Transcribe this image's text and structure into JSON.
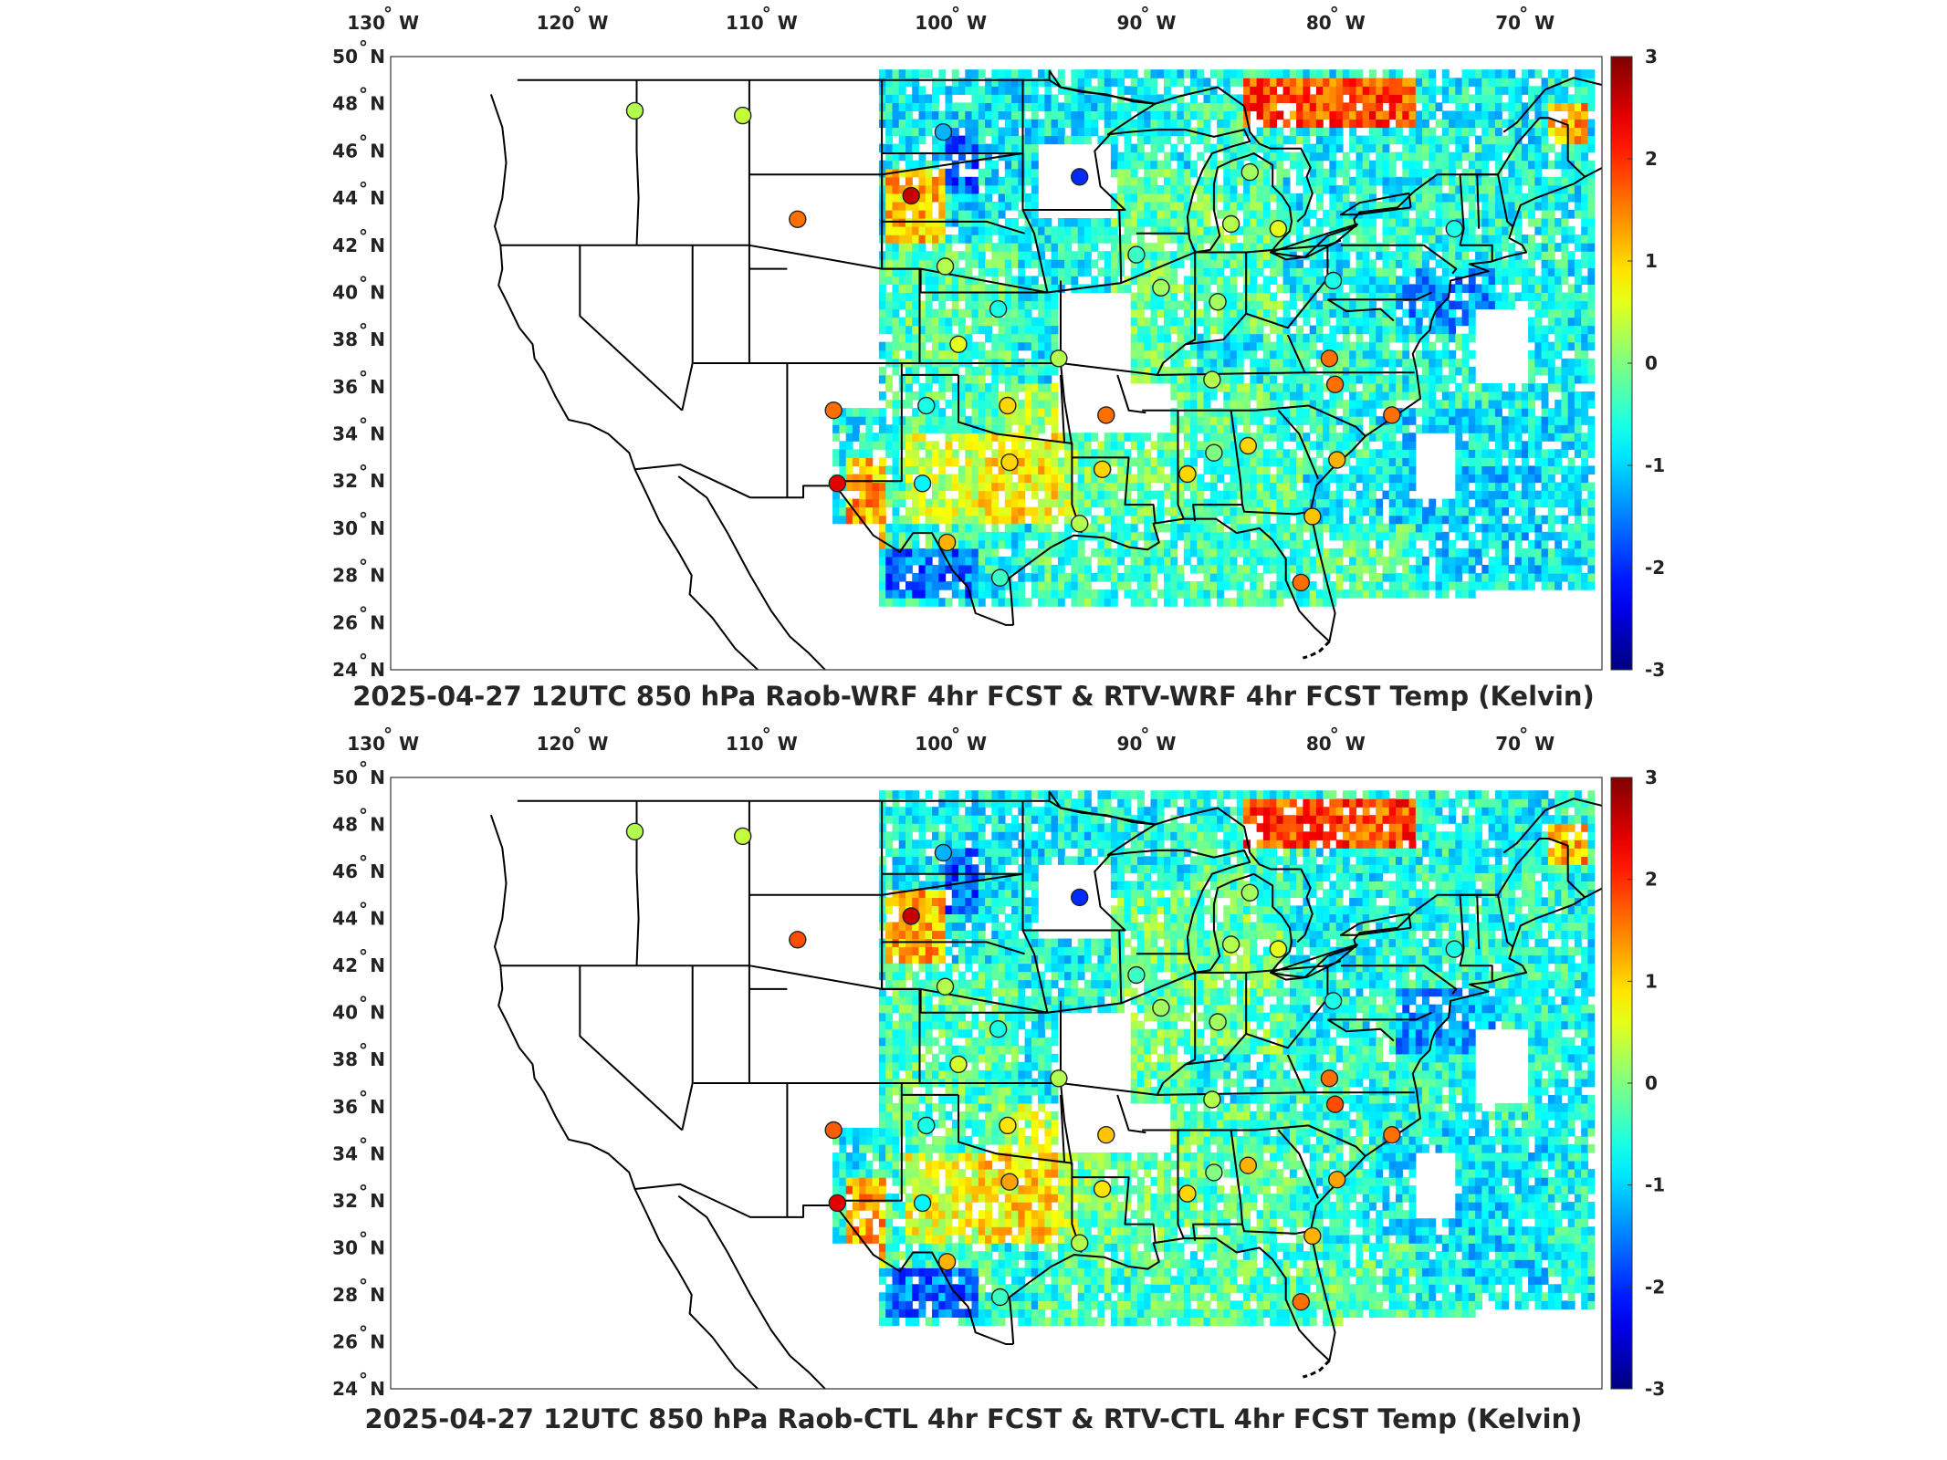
{
  "panels": [
    {
      "title": "2025-04-27 12UTC 850 hPa Raob-WRF 4hr FCST & RTV-WRF 4hr FCST Temp (Kelvin)",
      "variant": 0
    },
    {
      "title": "2025-04-27 12UTC 850 hPa Raob-CTL 4hr FCST & RTV-CTL 4hr FCST Temp (Kelvin)",
      "variant": 1
    }
  ],
  "map": {
    "lon_range": [
      -130,
      -66
    ],
    "lat_range": [
      24,
      50
    ],
    "lon_ticks": [
      {
        "lon": -130,
        "label": "130",
        "hem": "W"
      },
      {
        "lon": -120,
        "label": "120",
        "hem": "W"
      },
      {
        "lon": -110,
        "label": "110",
        "hem": "W"
      },
      {
        "lon": -100,
        "label": "100",
        "hem": "W"
      },
      {
        "lon": -90,
        "label": "90",
        "hem": "W"
      },
      {
        "lon": -80,
        "label": "80",
        "hem": "W"
      },
      {
        "lon": -70,
        "label": "70",
        "hem": "W"
      }
    ],
    "lat_ticks": [
      {
        "lat": 24,
        "label": "24",
        "hem": "N"
      },
      {
        "lat": 26,
        "label": "26",
        "hem": "N"
      },
      {
        "lat": 28,
        "label": "28",
        "hem": "N"
      },
      {
        "lat": 30,
        "label": "30",
        "hem": "N"
      },
      {
        "lat": 32,
        "label": "32",
        "hem": "N"
      },
      {
        "lat": 34,
        "label": "34",
        "hem": "N"
      },
      {
        "lat": 36,
        "label": "36",
        "hem": "N"
      },
      {
        "lat": 38,
        "label": "38",
        "hem": "N"
      },
      {
        "lat": 40,
        "label": "40",
        "hem": "N"
      },
      {
        "lat": 42,
        "label": "42",
        "hem": "N"
      },
      {
        "lat": 44,
        "label": "44",
        "hem": "N"
      },
      {
        "lat": 46,
        "label": "46",
        "hem": "N"
      },
      {
        "lat": 48,
        "label": "48",
        "hem": "N"
      },
      {
        "lat": 50,
        "label": "50",
        "hem": "N"
      }
    ],
    "colorbar": {
      "min": -3,
      "max": 3,
      "ticks": [
        "3",
        "2",
        "1",
        "0",
        "-1",
        "-2",
        "-3"
      ],
      "colormap": "jet"
    },
    "stations": [
      {
        "lon": -117.1,
        "lat": 47.7,
        "v": [
          0.3,
          0.3
        ]
      },
      {
        "lon": -111.4,
        "lat": 47.5,
        "v": [
          0.4,
          0.4
        ]
      },
      {
        "lon": -100.8,
        "lat": 46.8,
        "v": [
          -1.2,
          -1.2
        ]
      },
      {
        "lon": -93.6,
        "lat": 44.9,
        "v": [
          -2.0,
          -2.0
        ]
      },
      {
        "lon": -102.5,
        "lat": 44.1,
        "v": [
          2.6,
          2.6
        ]
      },
      {
        "lon": -108.5,
        "lat": 43.1,
        "v": [
          1.6,
          1.8
        ]
      },
      {
        "lon": -100.7,
        "lat": 41.1,
        "v": [
          0.3,
          0.3
        ]
      },
      {
        "lon": -97.9,
        "lat": 39.3,
        "v": [
          -0.6,
          -0.6
        ]
      },
      {
        "lon": -100.0,
        "lat": 37.8,
        "v": [
          0.6,
          0.5
        ]
      },
      {
        "lon": -94.7,
        "lat": 37.2,
        "v": [
          0.3,
          0.3
        ]
      },
      {
        "lon": -106.6,
        "lat": 35.0,
        "v": [
          1.6,
          1.7
        ]
      },
      {
        "lon": -101.7,
        "lat": 35.2,
        "v": [
          -0.6,
          -0.6
        ]
      },
      {
        "lon": -97.4,
        "lat": 35.2,
        "v": [
          1.0,
          0.9
        ]
      },
      {
        "lon": -92.2,
        "lat": 34.8,
        "v": [
          1.6,
          1.1
        ]
      },
      {
        "lon": -106.4,
        "lat": 31.9,
        "v": [
          2.4,
          2.4
        ]
      },
      {
        "lon": -101.9,
        "lat": 31.9,
        "v": [
          -0.8,
          -0.8
        ]
      },
      {
        "lon": -97.3,
        "lat": 32.8,
        "v": [
          1.0,
          1.3
        ]
      },
      {
        "lon": -92.4,
        "lat": 32.5,
        "v": [
          1.0,
          0.9
        ]
      },
      {
        "lon": -87.9,
        "lat": 32.3,
        "v": [
          1.0,
          1.0
        ]
      },
      {
        "lon": -84.7,
        "lat": 33.5,
        "v": [
          1.0,
          1.2
        ]
      },
      {
        "lon": -86.5,
        "lat": 33.2,
        "v": [
          0.0,
          0.0
        ]
      },
      {
        "lon": -80.0,
        "lat": 32.9,
        "v": [
          1.2,
          1.3
        ]
      },
      {
        "lon": -93.6,
        "lat": 30.2,
        "v": [
          0.3,
          0.3
        ]
      },
      {
        "lon": -100.6,
        "lat": 29.4,
        "v": [
          1.2,
          1.2
        ]
      },
      {
        "lon": -97.8,
        "lat": 27.9,
        "v": [
          -0.4,
          -0.4
        ]
      },
      {
        "lon": -81.3,
        "lat": 30.5,
        "v": [
          1.1,
          1.2
        ]
      },
      {
        "lon": -81.9,
        "lat": 27.7,
        "v": [
          1.6,
          1.6
        ]
      },
      {
        "lon": -85.6,
        "lat": 42.9,
        "v": [
          0.3,
          0.3
        ]
      },
      {
        "lon": -84.6,
        "lat": 45.1,
        "v": [
          0.2,
          0.2
        ]
      },
      {
        "lon": -83.1,
        "lat": 42.7,
        "v": [
          0.6,
          0.6
        ]
      },
      {
        "lon": -89.3,
        "lat": 40.2,
        "v": [
          0.2,
          0.2
        ]
      },
      {
        "lon": -86.3,
        "lat": 39.6,
        "v": [
          0.2,
          0.2
        ]
      },
      {
        "lon": -80.2,
        "lat": 40.5,
        "v": [
          -0.6,
          -0.6
        ]
      },
      {
        "lon": -86.6,
        "lat": 36.3,
        "v": [
          0.3,
          0.3
        ]
      },
      {
        "lon": -80.4,
        "lat": 37.2,
        "v": [
          1.6,
          1.6
        ]
      },
      {
        "lon": -80.1,
        "lat": 36.1,
        "v": [
          1.6,
          1.8
        ]
      },
      {
        "lon": -77.1,
        "lat": 34.8,
        "v": [
          1.6,
          1.6
        ]
      },
      {
        "lon": -73.8,
        "lat": 42.7,
        "v": [
          -0.6,
          -0.6
        ]
      },
      {
        "lon": -90.6,
        "lat": 41.6,
        "v": [
          -0.4,
          -0.4
        ]
      }
    ]
  }
}
